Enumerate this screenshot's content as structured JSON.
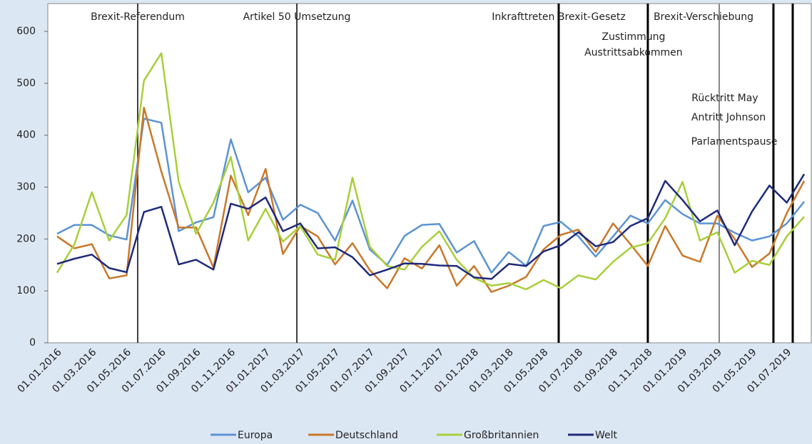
{
  "chart_data": {
    "type": "line",
    "categories": [
      "01.01.2016",
      null,
      "01.03.2016",
      null,
      "01.05.2016",
      null,
      "01.07.2016",
      null,
      "01.09.2016",
      null,
      "01.11.2016",
      null,
      "01.01.2017",
      null,
      "01.03.2017",
      null,
      "01.05.2017",
      null,
      "01.07.2017",
      null,
      "01.09.2017",
      null,
      "01.11.2017",
      null,
      "01.01.2018",
      null,
      "01.03.2018",
      null,
      "01.05.2018",
      null,
      "01.07.2018",
      null,
      "01.09.2018",
      null,
      "01.11.2018",
      null,
      "01.01.2019",
      null,
      "01.03.2019",
      null,
      "01.05.2019",
      null,
      "01.07.2019",
      null
    ],
    "series": [
      {
        "name": "Europa",
        "color": "#5b93d3",
        "values": [
          210,
          227,
          227,
          207,
          199,
          432,
          424,
          215,
          232,
          242,
          392,
          290,
          318,
          237,
          266,
          250,
          197,
          274,
          180,
          150,
          206,
          227,
          229,
          174,
          196,
          135,
          175,
          148,
          225,
          233,
          205,
          166,
          205,
          245,
          230,
          275,
          248,
          230,
          230,
          212,
          197,
          205,
          230,
          272
        ]
      },
      {
        "name": "Deutschland",
        "color": "#c8782a",
        "values": [
          205,
          182,
          190,
          124,
          130,
          453,
          330,
          222,
          222,
          145,
          322,
          246,
          335,
          171,
          225,
          205,
          151,
          192,
          140,
          105,
          163,
          143,
          188,
          110,
          148,
          98,
          110,
          127,
          180,
          208,
          218,
          175,
          230,
          190,
          148,
          225,
          168,
          156,
          245,
          200,
          146,
          172,
          250,
          312
        ]
      },
      {
        "name": "Großbritannien",
        "color": "#a8cf3a",
        "values": [
          135,
          190,
          290,
          197,
          246,
          505,
          558,
          310,
          210,
          270,
          358,
          197,
          258,
          195,
          225,
          170,
          160,
          318,
          185,
          148,
          141,
          185,
          215,
          160,
          125,
          110,
          115,
          103,
          121,
          105,
          130,
          122,
          156,
          183,
          192,
          240,
          310,
          197,
          213,
          135,
          158,
          150,
          205,
          243
        ]
      },
      {
        "name": "Welt",
        "color": "#1f2a7a",
        "values": [
          152,
          162,
          170,
          144,
          136,
          252,
          262,
          151,
          160,
          141,
          268,
          258,
          280,
          215,
          230,
          182,
          184,
          165,
          130,
          141,
          153,
          152,
          149,
          148,
          126,
          123,
          152,
          148,
          176,
          188,
          213,
          186,
          194,
          225,
          240,
          312,
          275,
          234,
          255,
          188,
          253,
          303,
          270,
          325
        ]
      }
    ],
    "ylim": [
      0,
      600
    ],
    "yticks": [
      0,
      100,
      200,
      300,
      400,
      500,
      600
    ],
    "grid": false,
    "events": [
      {
        "x": 4.64,
        "color": "#000000",
        "labels": [
          "Brexit-Referendum"
        ]
      },
      {
        "x": 13.8,
        "color": "#000000",
        "labels": [
          "Artikel 50 Umsetzung"
        ]
      },
      {
        "x": 28.87,
        "color": "#000000",
        "labels": [
          "Inkrafttreten Brexit-Gesetz"
        ]
      },
      {
        "x": 34.0,
        "color": "#000000",
        "labels": [
          "Zustimmung",
          "Austrittsabkommen"
        ]
      },
      {
        "x": 38.11,
        "color": "#888888",
        "labels": [
          "Brexit-Verschiebung"
        ]
      },
      {
        "x": 41.23,
        "color": "#000000",
        "labels": [
          "Rücktritt May"
        ]
      },
      {
        "x": 42.34,
        "color": "#000000",
        "labels": [
          "Antritt Johnson",
          "Parlamentspause"
        ]
      }
    ]
  }
}
